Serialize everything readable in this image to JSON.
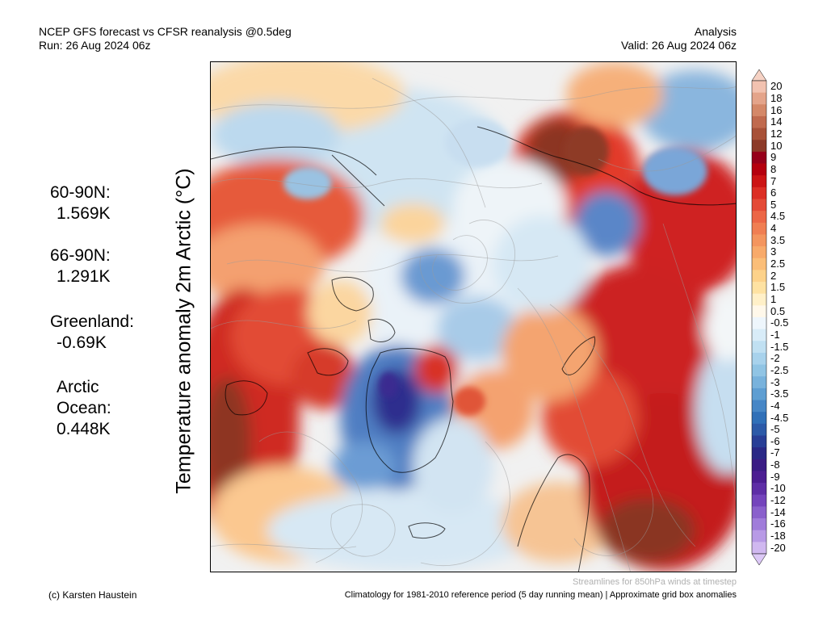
{
  "header": {
    "title": "NCEP GFS forecast vs CFSR reanalysis @0.5deg",
    "run": "Run: 26 Aug 2024 06z",
    "type": "Analysis",
    "valid": "Valid: 26 Aug 2024 06z"
  },
  "axis_label": "Temperature anomaly 2m Arctic (°C)",
  "stats": [
    {
      "label": "60-90N:",
      "value": "1.569K"
    },
    {
      "label": "66-90N:",
      "value": "1.291K"
    },
    {
      "label": "Greenland:",
      "value": "-0.69K"
    },
    {
      "label": "Arctic",
      "label2": "Ocean:",
      "value": "0.448K"
    }
  ],
  "colorbar": {
    "labels": [
      "20",
      "18",
      "16",
      "14",
      "12",
      "10",
      "9",
      "8",
      "7",
      "6",
      "5",
      "4.5",
      "4",
      "3.5",
      "3",
      "2.5",
      "2",
      "1.5",
      "1",
      "0.5",
      "-0.5",
      "-1",
      "-1.5",
      "-2",
      "-2.5",
      "-3",
      "-3.5",
      "-4",
      "-4.5",
      "-5",
      "-6",
      "-7",
      "-8",
      "-9",
      "-10",
      "-12",
      "-14",
      "-16",
      "-18",
      "-20"
    ],
    "colors": [
      "#f2c2b0",
      "#e4a48a",
      "#d48868",
      "#c06a4e",
      "#a85138",
      "#8c3a28",
      "#96001a",
      "#b5000e",
      "#cc1414",
      "#dc2e24",
      "#e44a36",
      "#ec6646",
      "#f07e52",
      "#f4955e",
      "#f8aa6a",
      "#fbbe78",
      "#fdd28a",
      "#fee2a2",
      "#fff0c8",
      "#fff8ea",
      "#eef6fc",
      "#d8ecf8",
      "#c0e0f2",
      "#a8d2ec",
      "#90c4e4",
      "#78b2dc",
      "#5e9ed2",
      "#4686c6",
      "#3070b8",
      "#2c5aa8",
      "#283e96",
      "#2a2886",
      "#3a1c84",
      "#4c1e92",
      "#5e2ea6",
      "#7444bc",
      "#8a60cc",
      "#a07cda",
      "#b89ae6",
      "#d0b8f0"
    ],
    "top_color": "#f6d2c4",
    "bottom_color": "#dcc8f6"
  },
  "footer": {
    "streamlines_note": "Streamlines for 850hPa winds at timestep",
    "credit": "(c) Karsten Haustein",
    "climatology_note": "Climatology for 1981-2010 reference period (5 day running mean) | Approximate grid box anomalies"
  }
}
